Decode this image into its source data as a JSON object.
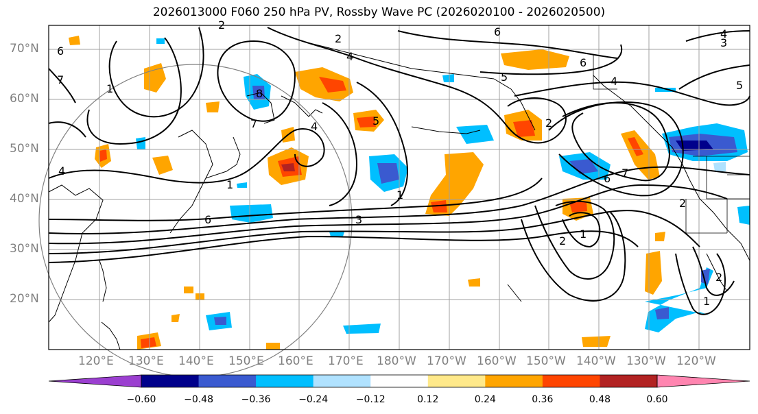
{
  "title": "2026013000 F060 250 hPa PV, Rossby Wave PC (2026020100 - 2026020500)",
  "latitude_labels": [
    "70°N",
    "60°N",
    "50°N",
    "40°N",
    "30°N",
    "20°N"
  ],
  "longitude_labels": [
    "120°E",
    "130°E",
    "140°E",
    "150°E",
    "160°E",
    "170°E",
    "180°W",
    "170°W",
    "160°W",
    "150°W",
    "140°W",
    "130°W",
    "120°W"
  ],
  "colorbar": {
    "ticks": [
      "−0.60",
      "−0.48",
      "−0.36",
      "−0.24",
      "−0.12",
      "0.12",
      "0.24",
      "0.36",
      "0.48",
      "0.60"
    ],
    "colors": [
      "#9b3fd0",
      "#00008b",
      "#3a5ad0",
      "#00bfff",
      "#b0e2ff",
      "#ffffff",
      "#ffe98a",
      "#ffa500",
      "#ff4500",
      "#b22222",
      "#ff85b0"
    ]
  },
  "contour_labels": [
    "2",
    "4",
    "6",
    "5",
    "1",
    "3",
    "8",
    "7"
  ],
  "colors": {
    "contour": "#000000",
    "grid": "#a0a0a0",
    "coast": "#000000",
    "circle": "#808080"
  }
}
